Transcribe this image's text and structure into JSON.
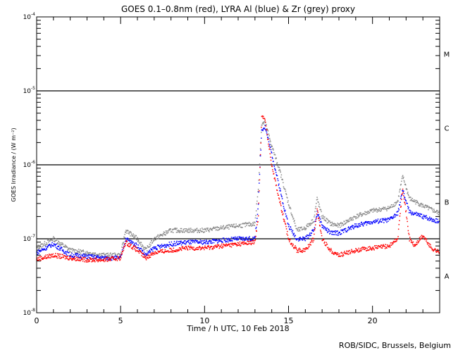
{
  "chart_data": {
    "type": "scatter",
    "title": "GOES 0.1–0.8nm (red), LYRA Al (blue) & Zr (grey) proxy",
    "xlabel": "Time / h UTC, 10 Feb 2018",
    "ylabel": "GOES Irradiance / (W m⁻²)",
    "credit": "ROB/SIDC, Brussels, Belgium",
    "xlim": [
      0,
      24
    ],
    "ylim": [
      1e-08,
      0.0001
    ],
    "yscale": "log",
    "xticks": [
      {
        "v": 0,
        "label": "0"
      },
      {
        "v": 5,
        "label": "5"
      },
      {
        "v": 10,
        "label": "10"
      },
      {
        "v": 15,
        "label": "15"
      },
      {
        "v": 20,
        "label": "20"
      }
    ],
    "yticks": [
      {
        "v": 1e-08,
        "label": "10",
        "exp": "-8"
      },
      {
        "v": 1e-07,
        "label": "10",
        "exp": "-7"
      },
      {
        "v": 1e-06,
        "label": "10",
        "exp": "-6"
      },
      {
        "v": 1e-05,
        "label": "10",
        "exp": "-5"
      },
      {
        "v": 0.0001,
        "label": "10",
        "exp": "-4"
      }
    ],
    "hlines": [
      1e-07,
      1e-06,
      1e-05
    ],
    "classes": [
      {
        "label": "A",
        "v": 3.16e-08
      },
      {
        "label": "B",
        "v": 3.16e-07
      },
      {
        "label": "C",
        "v": 3.16e-06
      },
      {
        "label": "M",
        "v": 3.16e-05
      }
    ],
    "series": [
      {
        "name": "LYRA Zr proxy",
        "color": "#888888",
        "points": [
          [
            0,
            7.5e-08
          ],
          [
            1,
            1e-07
          ],
          [
            2,
            7e-08
          ],
          [
            3,
            6.5e-08
          ],
          [
            4,
            6e-08
          ],
          [
            5,
            6e-08
          ],
          [
            5.3,
            1.3e-07
          ],
          [
            6,
            1e-07
          ],
          [
            6.5,
            7e-08
          ],
          [
            7,
            1e-07
          ],
          [
            8,
            1.3e-07
          ],
          [
            9,
            1.3e-07
          ],
          [
            10,
            1.3e-07
          ],
          [
            11,
            1.4e-07
          ],
          [
            12,
            1.5e-07
          ],
          [
            13,
            1.6e-07
          ],
          [
            13.2,
            5e-07
          ],
          [
            13.4,
            3.5e-06
          ],
          [
            13.6,
            3.8e-06
          ],
          [
            14,
            1.8e-06
          ],
          [
            14.5,
            8e-07
          ],
          [
            15,
            3e-07
          ],
          [
            15.5,
            1.3e-07
          ],
          [
            16,
            1.4e-07
          ],
          [
            16.5,
            1.8e-07
          ],
          [
            16.7,
            3.5e-07
          ],
          [
            17,
            2e-07
          ],
          [
            17.5,
            1.6e-07
          ],
          [
            18,
            1.5e-07
          ],
          [
            19,
            2e-07
          ],
          [
            20,
            2.4e-07
          ],
          [
            21,
            2.6e-07
          ],
          [
            21.5,
            3.2e-07
          ],
          [
            21.8,
            7e-07
          ],
          [
            22.2,
            3.5e-07
          ],
          [
            23,
            2.8e-07
          ],
          [
            24,
            2.2e-07
          ]
        ]
      },
      {
        "name": "LYRA Al proxy",
        "color": "#0000ff",
        "points": [
          [
            0,
            6.5e-08
          ],
          [
            1,
            8.5e-08
          ],
          [
            2,
            6e-08
          ],
          [
            3,
            5.8e-08
          ],
          [
            4,
            5.5e-08
          ],
          [
            5,
            5.5e-08
          ],
          [
            5.3,
            1e-07
          ],
          [
            6,
            8e-08
          ],
          [
            6.5,
            6e-08
          ],
          [
            7,
            7.5e-08
          ],
          [
            8,
            8.5e-08
          ],
          [
            9,
            9e-08
          ],
          [
            10,
            9e-08
          ],
          [
            11,
            9.5e-08
          ],
          [
            12,
            1e-07
          ],
          [
            13,
            1e-07
          ],
          [
            13.2,
            3e-07
          ],
          [
            13.4,
            3e-06
          ],
          [
            13.6,
            3.3e-06
          ],
          [
            14,
            1.4e-06
          ],
          [
            14.5,
            4.5e-07
          ],
          [
            15,
            1.5e-07
          ],
          [
            15.5,
            1e-07
          ],
          [
            16,
            1e-07
          ],
          [
            16.5,
            1.3e-07
          ],
          [
            16.7,
            2.3e-07
          ],
          [
            17,
            1.5e-07
          ],
          [
            17.5,
            1.2e-07
          ],
          [
            18,
            1.2e-07
          ],
          [
            19,
            1.5e-07
          ],
          [
            20,
            1.7e-07
          ],
          [
            21,
            1.8e-07
          ],
          [
            21.5,
            2.2e-07
          ],
          [
            21.8,
            4.5e-07
          ],
          [
            22.2,
            2.3e-07
          ],
          [
            23,
            2e-07
          ],
          [
            24,
            1.7e-07
          ]
        ]
      },
      {
        "name": "GOES 0.1-0.8nm",
        "color": "#ff0000",
        "points": [
          [
            0,
            5.3e-08
          ],
          [
            1,
            6e-08
          ],
          [
            2,
            5.5e-08
          ],
          [
            3,
            5.2e-08
          ],
          [
            4,
            5.2e-08
          ],
          [
            5,
            5.5e-08
          ],
          [
            5.3,
            9e-08
          ],
          [
            6,
            7e-08
          ],
          [
            6.5,
            5.5e-08
          ],
          [
            7,
            6.5e-08
          ],
          [
            8,
            7e-08
          ],
          [
            9,
            7.5e-08
          ],
          [
            10,
            7.5e-08
          ],
          [
            11,
            8e-08
          ],
          [
            12,
            8.5e-08
          ],
          [
            13,
            9e-08
          ],
          [
            13.2,
            2e-07
          ],
          [
            13.4,
            4.6e-06
          ],
          [
            13.6,
            4e-06
          ],
          [
            14,
            1e-06
          ],
          [
            14.5,
            3e-07
          ],
          [
            15,
            1e-07
          ],
          [
            15.5,
            7e-08
          ],
          [
            16,
            7e-08
          ],
          [
            16.5,
            1e-07
          ],
          [
            16.7,
            2.5e-07
          ],
          [
            17,
            1e-07
          ],
          [
            17.5,
            7e-08
          ],
          [
            18,
            6e-08
          ],
          [
            19,
            7e-08
          ],
          [
            20,
            7.5e-08
          ],
          [
            21,
            8e-08
          ],
          [
            21.5,
            1e-07
          ],
          [
            21.8,
            5e-07
          ],
          [
            22.2,
            1e-07
          ],
          [
            22.5,
            8e-08
          ],
          [
            23,
            1.1e-07
          ],
          [
            23.5,
            7.5e-08
          ],
          [
            24,
            6.5e-08
          ]
        ]
      }
    ]
  }
}
